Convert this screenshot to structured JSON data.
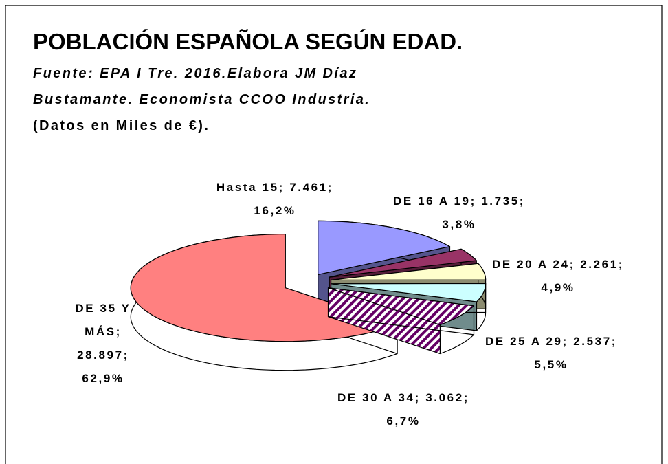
{
  "chart_data": {
    "type": "pie",
    "title": "POBLACIÓN ESPAÑOLA SEGÚN EDAD.",
    "subtitle": [
      "Fuente: EPA I Tre. 2016.Elabora JM Díaz",
      "Bustamante. Economista CCOO Industria."
    ],
    "note": "(Datos en Miles de €).",
    "categories": [
      "Hasta 15",
      "DE 16 A 19",
      "DE 20 A 24",
      "DE 25 A 29",
      "DE 30 A 34",
      "DE 35 Y MÁS"
    ],
    "values": [
      7461,
      1735,
      2261,
      2537,
      3062,
      28897
    ],
    "value_labels": [
      "7.461",
      "1.735",
      "2.261",
      "2.537",
      "3.062",
      "28.897"
    ],
    "percents": [
      16.2,
      3.8,
      4.9,
      5.5,
      6.7,
      62.9
    ],
    "percent_labels": [
      "16,2%",
      "3,8%",
      "4,9%",
      "5,5%",
      "6,7%",
      "62,9%"
    ],
    "label_separator": ";",
    "colors": [
      "#9999ff",
      "#993366",
      "#ffffcc",
      "#ccffff",
      "#660066",
      "#ff8080"
    ],
    "hatched": [
      false,
      false,
      false,
      false,
      true,
      false
    ]
  }
}
